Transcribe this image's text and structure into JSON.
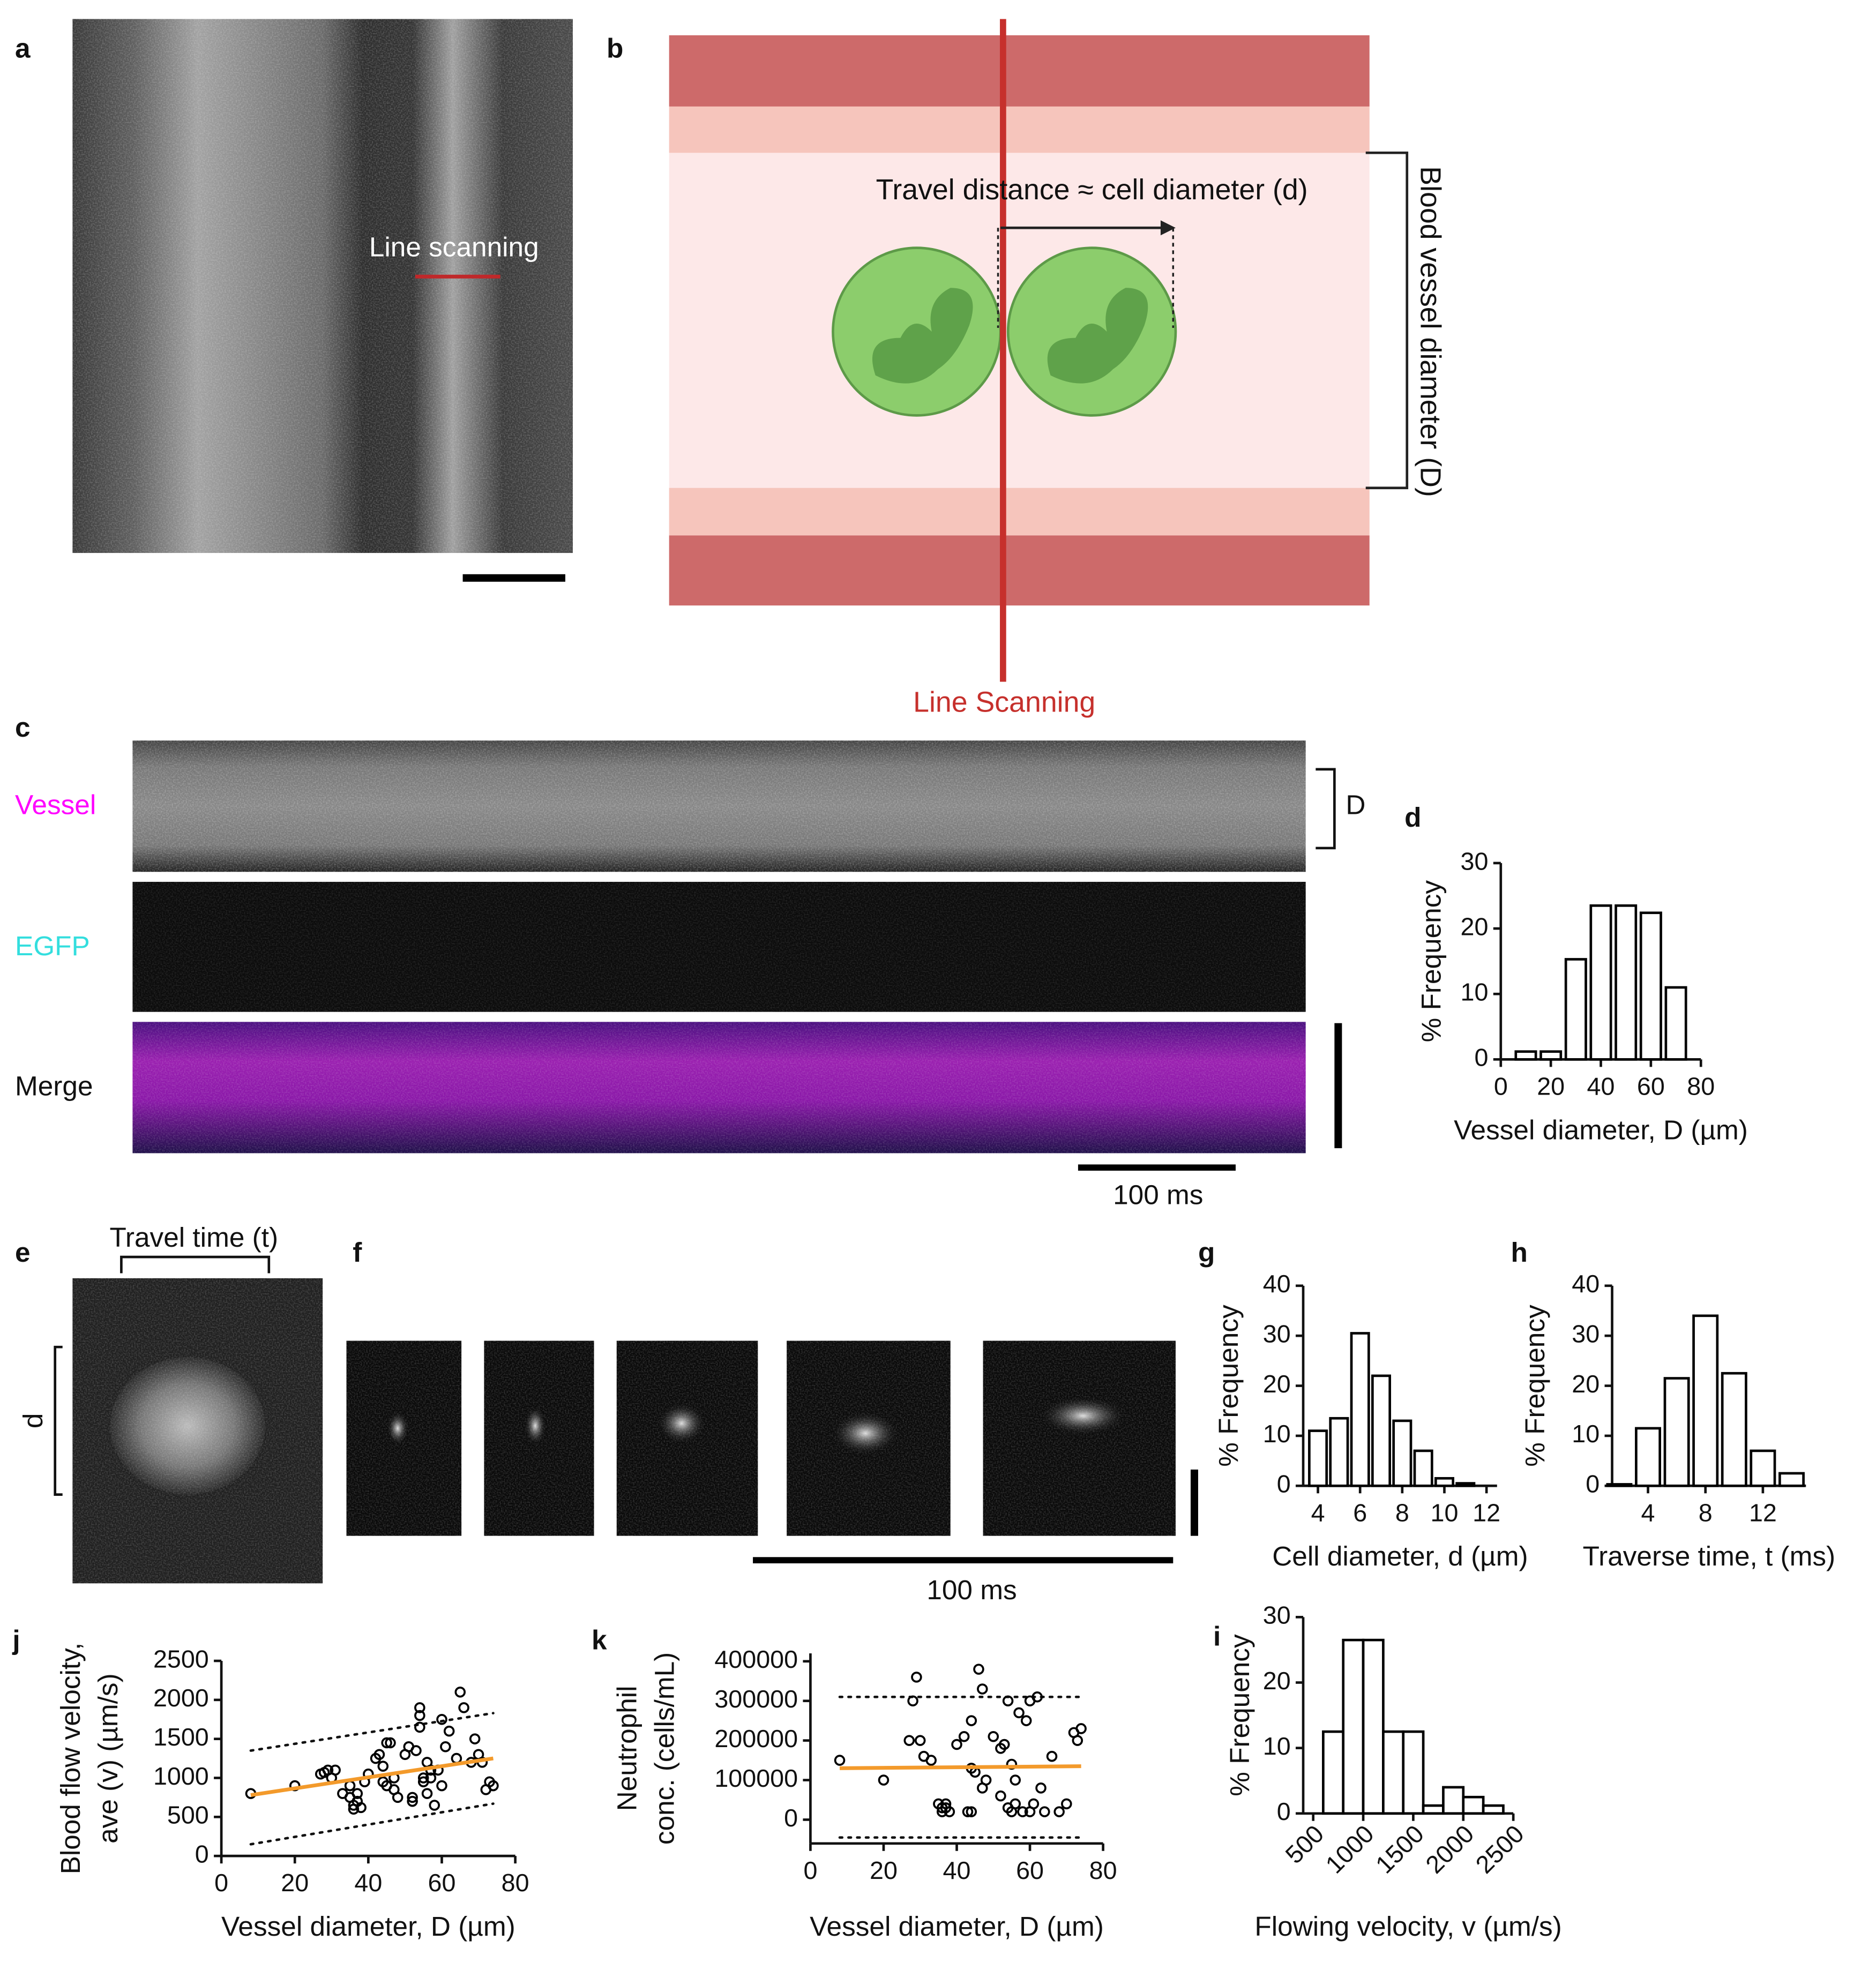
{
  "panel_labels": [
    "a",
    "b",
    "c",
    "d",
    "e",
    "f",
    "g",
    "h",
    "i",
    "j",
    "k"
  ],
  "panel_a": {
    "annotation": "Line scanning"
  },
  "panel_b": {
    "travel": "Travel distance ≈ cell diameter (d)",
    "vessel": "Blood vessel diameter (D)",
    "scan": "Line Scanning"
  },
  "panel_c": {
    "rows": [
      "Vessel",
      "EGFP",
      "Merge"
    ],
    "bracket": "D",
    "scale": "100 ms"
  },
  "panel_e": {
    "travel": "Travel time (t)",
    "bracket": "d"
  },
  "panel_f": {
    "scale": "100 ms"
  },
  "chart_data": [
    {
      "type": "histogram",
      "x_label": "Vessel diameter, D (µm)",
      "y_label": "% Frequency",
      "bins": [
        5,
        15,
        25,
        35,
        45,
        55,
        65,
        75
      ],
      "values": [
        1.2,
        1.2,
        15.3,
        23.5,
        23.5,
        22.4,
        11
      ],
      "xlim": [
        0,
        80
      ],
      "xticks": [
        0,
        20,
        40,
        60,
        80
      ],
      "ylim": [
        0,
        30
      ],
      "yticks": [
        0,
        10,
        20,
        30
      ],
      "color": "#ffffff",
      "edge_color": "#000000"
    },
    {
      "type": "histogram",
      "x_label": "Cell diameter, d (µm)",
      "y_label": "% Frequency",
      "bins": [
        3.5,
        4.5,
        5.5,
        6.5,
        7.5,
        8.5,
        9.5,
        10.5,
        11.5
      ],
      "values": [
        11,
        13.5,
        30.5,
        22,
        13,
        7,
        1.5,
        0.5
      ],
      "xlim": [
        3.3,
        12.5
      ],
      "xticks": [
        4,
        6,
        8,
        10,
        12
      ],
      "ylim": [
        0,
        40
      ],
      "yticks": [
        0,
        10,
        20,
        30,
        40
      ],
      "color": "#ffffff",
      "edge_color": "#000000"
    },
    {
      "type": "histogram",
      "x_label": "Traverse time, t (ms)",
      "y_label": "% Frequency",
      "bins": [
        1,
        3,
        5,
        7,
        9,
        11,
        13,
        15
      ],
      "values": [
        0.3,
        11.5,
        21.5,
        34,
        22.5,
        7,
        2.5
      ],
      "xlim": [
        1.5,
        15
      ],
      "xticks": [
        4,
        8,
        12
      ],
      "ylim": [
        0,
        40
      ],
      "yticks": [
        0,
        10,
        20,
        30,
        40
      ],
      "color": "#ffffff",
      "edge_color": "#000000"
    },
    {
      "type": "histogram",
      "x_label": "Flowing velocity, v (µm/s)",
      "y_label": "% Frequency",
      "bins": [
        600,
        800,
        1000,
        1200,
        1400,
        1600,
        1800,
        2000,
        2200,
        2400
      ],
      "values": [
        12.5,
        26.5,
        26.5,
        12.5,
        12.5,
        1.2,
        4,
        2.5,
        1.2
      ],
      "xlim": [
        400,
        2500
      ],
      "xticks": [
        500,
        1000,
        1500,
        2000,
        2500
      ],
      "ylim": [
        0,
        30
      ],
      "yticks": [
        0,
        10,
        20,
        30
      ],
      "color": "#ffffff",
      "edge_color": "#000000"
    },
    {
      "type": "scatter",
      "x_label": "Vessel diameter, D (µm)",
      "y_label": [
        "Blood flow velocity,",
        "ave (v) (µm/s)"
      ],
      "x": [
        8,
        20,
        27,
        28,
        29,
        30,
        31,
        33,
        35,
        35,
        36,
        36,
        37,
        37,
        38,
        39,
        40,
        42,
        43,
        44,
        44,
        45,
        45,
        46,
        47,
        47,
        48,
        50,
        51,
        52,
        52,
        53,
        54,
        54,
        54,
        55,
        55,
        56,
        56,
        57,
        57,
        58,
        59,
        60,
        60,
        61,
        62,
        64,
        65,
        66,
        68,
        69,
        70,
        71,
        72,
        73,
        74
      ],
      "y": [
        800,
        900,
        1050,
        1070,
        1100,
        1000,
        1100,
        800,
        750,
        900,
        650,
        600,
        700,
        800,
        620,
        950,
        1050,
        1250,
        1300,
        950,
        1150,
        1450,
        900,
        1450,
        1000,
        850,
        750,
        1300,
        1400,
        700,
        750,
        1350,
        1650,
        1900,
        1800,
        1000,
        950,
        1200,
        800,
        1000,
        1100,
        650,
        1100,
        900,
        1750,
        1400,
        1600,
        1250,
        2100,
        1900,
        1200,
        1500,
        1300,
        1200,
        850,
        950,
        900
      ],
      "fit": {
        "x": [
          8,
          74
        ],
        "y": [
          780,
          1250
        ],
        "color": "#f39a2b"
      },
      "upper": {
        "x": [
          8,
          74
        ],
        "y": [
          1350,
          1830
        ]
      },
      "lower": {
        "x": [
          8,
          74
        ],
        "y": [
          150,
          670
        ]
      },
      "xlim": [
        0,
        80
      ],
      "xticks": [
        0,
        20,
        40,
        60,
        80
      ],
      "ylim": [
        0,
        2500
      ],
      "yticks": [
        0,
        500,
        1000,
        1500,
        2000,
        2500
      ],
      "color": "#000000"
    },
    {
      "type": "scatter",
      "x_label": "Vessel diameter, D (µm)",
      "y_label": [
        "Neutrophil",
        "conc. (cells/mL)"
      ],
      "x": [
        8,
        20,
        27,
        28,
        29,
        30,
        31,
        33,
        35,
        36,
        36,
        37,
        37,
        38,
        40,
        42,
        43,
        44,
        44,
        45,
        46,
        47,
        47,
        48,
        50,
        52,
        53,
        54,
        54,
        55,
        55,
        56,
        57,
        58,
        59,
        60,
        60,
        61,
        62,
        63,
        64,
        66,
        68,
        70,
        72,
        73,
        74,
        44,
        52,
        56
      ],
      "y": [
        150000,
        100000,
        200000,
        300000,
        360000,
        200000,
        160000,
        150000,
        40000,
        30000,
        20000,
        40000,
        30000,
        20000,
        190000,
        210000,
        20000,
        20000,
        250000,
        120000,
        380000,
        330000,
        80000,
        100000,
        210000,
        180000,
        190000,
        30000,
        300000,
        20000,
        140000,
        100000,
        270000,
        20000,
        250000,
        300000,
        20000,
        40000,
        310000,
        80000,
        20000,
        160000,
        20000,
        40000,
        220000,
        200000,
        230000,
        130000,
        60000,
        40000
      ],
      "fit": {
        "x": [
          8,
          74
        ],
        "y": [
          130000,
          135000
        ],
        "color": "#f39a2b"
      },
      "upper": {
        "x": [
          8,
          74
        ],
        "y": [
          310000,
          310000
        ]
      },
      "lower": {
        "x": [
          8,
          74
        ],
        "y": [
          -45000,
          -45000
        ]
      },
      "xlim": [
        0,
        80
      ],
      "xticks": [
        0,
        20,
        40,
        60,
        80
      ],
      "ylim": [
        -60000,
        420000
      ],
      "yticks": [
        0,
        100000,
        200000,
        300000,
        400000
      ],
      "color": "#000000"
    }
  ]
}
